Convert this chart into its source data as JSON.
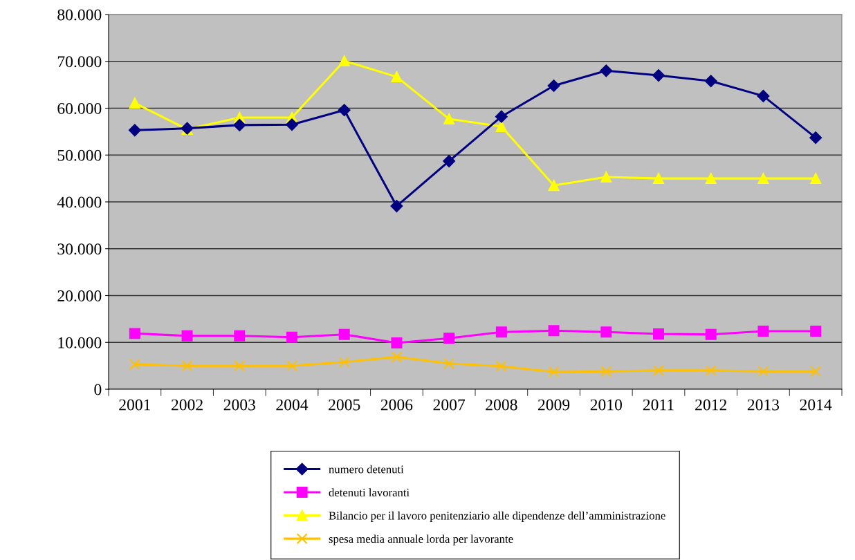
{
  "chart_data": {
    "type": "line",
    "categories": [
      "2001",
      "2002",
      "2003",
      "2004",
      "2005",
      "2006",
      "2007",
      "2008",
      "2009",
      "2010",
      "2011",
      "2012",
      "2013",
      "2014"
    ],
    "series": [
      {
        "name": "numero detenuti",
        "color": "#000080",
        "marker": "diamond",
        "values": [
          55300,
          55700,
          56400,
          56500,
          59600,
          39100,
          48700,
          58200,
          64800,
          68000,
          67000,
          65800,
          62600,
          53700
        ]
      },
      {
        "name": "detenuti lavoranti",
        "color": "#ff00ff",
        "marker": "square",
        "values": [
          11900,
          11400,
          11400,
          11100,
          11700,
          9900,
          10900,
          12200,
          12500,
          12200,
          11800,
          11700,
          12400,
          12400
        ]
      },
      {
        "name": "Bilancio per il lavoro penitenziario alle dipendenze dell’amministrazione",
        "color": "#ffff00",
        "marker": "triangle",
        "values": [
          61100,
          55500,
          58000,
          58000,
          70100,
          66700,
          57700,
          56100,
          43500,
          45300,
          45000,
          45000,
          45000,
          45000
        ]
      },
      {
        "name": "spesa media annuale lorda per lavorante",
        "color": "#ffc000",
        "marker": "cross",
        "values": [
          5300,
          5000,
          5000,
          5000,
          5800,
          6900,
          5500,
          4900,
          3700,
          3800,
          4000,
          4000,
          3800,
          3800
        ]
      }
    ],
    "ylim": [
      0,
      80000
    ],
    "yticks": [
      {
        "value": 0,
        "label": "0"
      },
      {
        "value": 10000,
        "label": "10.000"
      },
      {
        "value": 20000,
        "label": "20.000"
      },
      {
        "value": 30000,
        "label": "30.000"
      },
      {
        "value": 40000,
        "label": "40.000"
      },
      {
        "value": 50000,
        "label": "50.000"
      },
      {
        "value": 60000,
        "label": "60.000"
      },
      {
        "value": 70000,
        "label": "70.000"
      },
      {
        "value": 80000,
        "label": "80.000"
      }
    ],
    "grid": "y",
    "legend": "bottom",
    "line_style": "solid"
  }
}
